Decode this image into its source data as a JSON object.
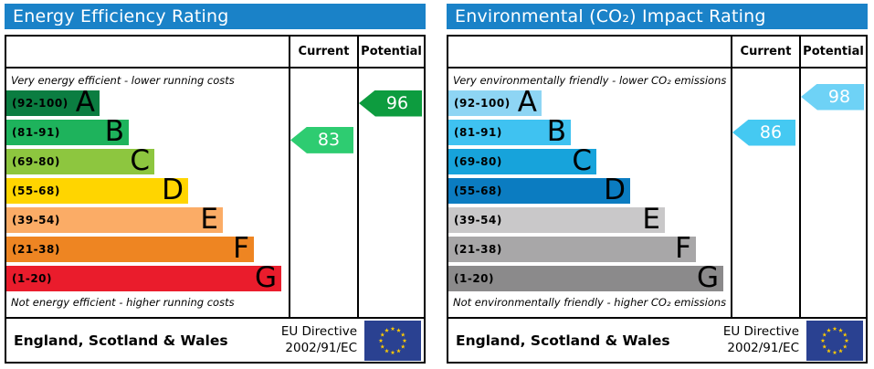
{
  "header_color": "#1a82c8",
  "eu_flag": {
    "background": "#2a4191",
    "stars": "#ffcc00"
  },
  "panels": [
    {
      "title": "Energy Efficiency Rating",
      "header": {
        "current": "Current",
        "potential": "Potential"
      },
      "top_note": "Very energy efficient - lower running costs",
      "bottom_note": "Not energy efficient - higher running costs",
      "bands": [
        {
          "letter": "A",
          "range": "(92-100)",
          "range_min": 92,
          "range_max": 100,
          "color": "#0b7d41"
        },
        {
          "letter": "B",
          "range": "(81-91)",
          "range_min": 81,
          "range_max": 91,
          "color": "#1eb35c"
        },
        {
          "letter": "C",
          "range": "(69-80)",
          "range_min": 69,
          "range_max": 80,
          "color": "#8dc63f"
        },
        {
          "letter": "D",
          "range": "(55-68)",
          "range_min": 55,
          "range_max": 68,
          "color": "#ffd500"
        },
        {
          "letter": "E",
          "range": "(39-54)",
          "range_min": 39,
          "range_max": 54,
          "color": "#fbac66"
        },
        {
          "letter": "F",
          "range": "(21-38)",
          "range_min": 21,
          "range_max": 38,
          "color": "#ee8522"
        },
        {
          "letter": "G",
          "range": "(1-20)",
          "range_min": 1,
          "range_max": 20,
          "color": "#ea1c2c"
        }
      ],
      "arrows": {
        "current": {
          "value": 83,
          "color": "#2ecc71"
        },
        "potential": {
          "value": 96,
          "color": "#0d9c3f"
        }
      },
      "footer": {
        "region": "England, Scotland & Wales",
        "directive_line1": "EU Directive",
        "directive_line2": "2002/91/EC"
      }
    },
    {
      "title": "Environmental (CO₂) Impact Rating",
      "header": {
        "current": "Current",
        "potential": "Potential"
      },
      "top_note": "Very environmentally friendly - lower CO₂ emissions",
      "bottom_note": "Not environmentally friendly - higher CO₂ emissions",
      "bands": [
        {
          "letter": "A",
          "range": "(92-100)",
          "range_min": 92,
          "range_max": 100,
          "color": "#8ed5f4"
        },
        {
          "letter": "B",
          "range": "(81-91)",
          "range_min": 81,
          "range_max": 91,
          "color": "#3fc2f1"
        },
        {
          "letter": "C",
          "range": "(69-80)",
          "range_min": 69,
          "range_max": 80,
          "color": "#17a3db"
        },
        {
          "letter": "D",
          "range": "(55-68)",
          "range_min": 55,
          "range_max": 68,
          "color": "#0b7cc1"
        },
        {
          "letter": "E",
          "range": "(39-54)",
          "range_min": 39,
          "range_max": 54,
          "color": "#c9c8c9"
        },
        {
          "letter": "F",
          "range": "(21-38)",
          "range_min": 21,
          "range_max": 38,
          "color": "#a8a7a8"
        },
        {
          "letter": "G",
          "range": "(1-20)",
          "range_min": 1,
          "range_max": 20,
          "color": "#8b8a8b"
        }
      ],
      "arrows": {
        "current": {
          "value": 86,
          "color": "#45c9f2"
        },
        "potential": {
          "value": 98,
          "color": "#6ed2f6"
        }
      },
      "footer": {
        "region": "England, Scotland & Wales",
        "directive_line1": "EU Directive",
        "directive_line2": "2002/91/EC"
      }
    }
  ],
  "chart_data": [
    {
      "type": "bar",
      "title": "Energy Efficiency Rating",
      "categories": [
        "A (92-100)",
        "B (81-91)",
        "C (69-80)",
        "D (55-68)",
        "E (39-54)",
        "F (21-38)",
        "G (1-20)"
      ],
      "series": [
        {
          "name": "Current",
          "values": [
            83
          ],
          "band": "B"
        },
        {
          "name": "Potential",
          "values": [
            96
          ],
          "band": "A"
        }
      ],
      "scale_range": [
        1,
        100
      ],
      "annotations": [
        "Very energy efficient - lower running costs",
        "Not energy efficient - higher running costs",
        "England, Scotland & Wales",
        "EU Directive 2002/91/EC"
      ]
    },
    {
      "type": "bar",
      "title": "Environmental (CO₂) Impact Rating",
      "categories": [
        "A (92-100)",
        "B (81-91)",
        "C (69-80)",
        "D (55-68)",
        "E (39-54)",
        "F (21-38)",
        "G (1-20)"
      ],
      "series": [
        {
          "name": "Current",
          "values": [
            86
          ],
          "band": "B"
        },
        {
          "name": "Potential",
          "values": [
            98
          ],
          "band": "A"
        }
      ],
      "scale_range": [
        1,
        100
      ],
      "annotations": [
        "Very environmentally friendly - lower CO₂ emissions",
        "Not environmentally friendly - higher CO₂ emissions",
        "England, Scotland & Wales",
        "EU Directive 2002/91/EC"
      ]
    }
  ]
}
